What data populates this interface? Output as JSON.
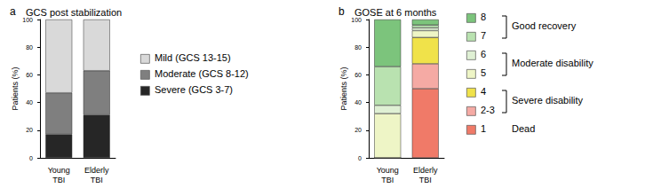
{
  "chart_data": [
    {
      "type": "bar",
      "panel": "a",
      "title": "GCS post stabilization",
      "ylabel": "Patients (%)",
      "categories": [
        "Young TBI",
        "Elderly TBI"
      ],
      "stacked": true,
      "legend": "right",
      "ylim": [
        0,
        100
      ],
      "yticks": [
        0,
        20,
        40,
        60,
        80,
        100
      ],
      "series": [
        {
          "name": "Severe (GCS 3-7)",
          "color": "#262626",
          "values": [
            17,
            31
          ]
        },
        {
          "name": "Moderate (GCS 8-12)",
          "color": "#7f7f7f",
          "values": [
            30,
            32
          ]
        },
        {
          "name": "Mild (GCS 13-15)",
          "color": "#d9d9d9",
          "values": [
            53,
            37
          ]
        }
      ]
    },
    {
      "type": "bar",
      "panel": "b",
      "title": "GOSE at 6 months",
      "ylabel": "Patients (%)",
      "categories": [
        "Young TBI",
        "Elderly TBI"
      ],
      "stacked": true,
      "legend": "right",
      "ylim": [
        0,
        100
      ],
      "yticks": [
        0,
        20,
        40,
        60,
        80,
        100
      ],
      "series": [
        {
          "name": "1",
          "color": "#f07a68",
          "values": [
            0,
            50
          ]
        },
        {
          "name": "2-3",
          "color": "#f5aaa4",
          "values": [
            0,
            18
          ]
        },
        {
          "name": "4",
          "color": "#f0e24a",
          "values": [
            0,
            19
          ]
        },
        {
          "name": "5",
          "color": "#eef5c6",
          "values": [
            32,
            5
          ]
        },
        {
          "name": "6",
          "color": "#dff0d4",
          "values": [
            6,
            2
          ]
        },
        {
          "name": "7",
          "color": "#b9e2b0",
          "values": [
            28,
            2
          ]
        },
        {
          "name": "8",
          "color": "#7cc47c",
          "values": [
            34,
            4
          ]
        }
      ],
      "legend_groups": [
        {
          "label": "Good recovery",
          "members": [
            "8",
            "7"
          ]
        },
        {
          "label": "Moderate disability",
          "members": [
            "6",
            "5"
          ]
        },
        {
          "label": "Severe disability",
          "members": [
            "4",
            "2-3"
          ]
        },
        {
          "label": "Dead",
          "members": [
            "1"
          ]
        }
      ]
    }
  ]
}
